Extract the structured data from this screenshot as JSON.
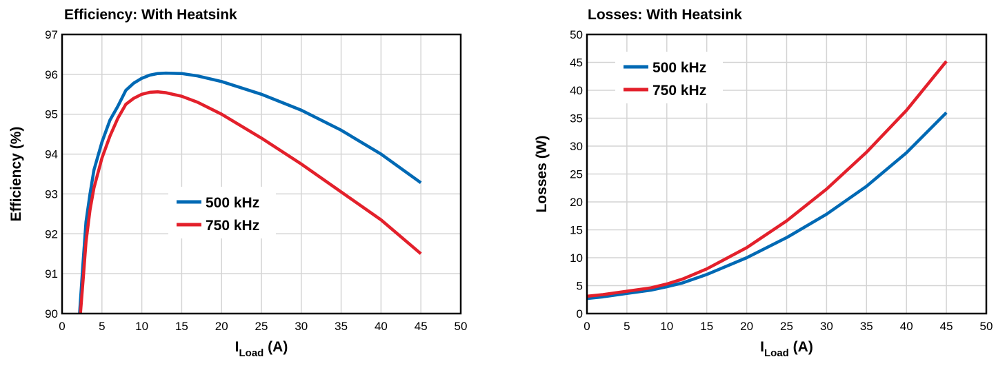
{
  "chart_data": [
    {
      "type": "line",
      "title": "Efficiency: With Heatsink",
      "xlabel": "I",
      "xlabel_sub": "Load",
      "xlabel_unit": " (A)",
      "ylabel": "Efficiency (%)",
      "xlim": [
        0,
        50
      ],
      "ylim": [
        90,
        97
      ],
      "xticks": [
        0,
        5,
        10,
        15,
        20,
        25,
        30,
        35,
        40,
        45,
        50
      ],
      "yticks": [
        90,
        91,
        92,
        93,
        94,
        95,
        96,
        97
      ],
      "grid": true,
      "legend_position": "center",
      "series": [
        {
          "name": "500 kHz",
          "color": "#0069b4",
          "x": [
            2.2,
            2.6,
            3,
            3.5,
            4,
            5,
            6,
            7,
            8,
            9,
            10,
            11,
            12,
            13,
            15,
            17,
            20,
            25,
            30,
            35,
            40,
            45
          ],
          "y": [
            90,
            91.2,
            92.3,
            93.0,
            93.6,
            94.3,
            94.85,
            95.2,
            95.6,
            95.78,
            95.9,
            95.98,
            96.02,
            96.03,
            96.02,
            95.96,
            95.82,
            95.5,
            95.1,
            94.6,
            94.0,
            93.28
          ]
        },
        {
          "name": "750 kHz",
          "color": "#e3202b",
          "x": [
            2.3,
            2.7,
            3,
            3.5,
            4,
            5,
            6,
            7,
            8,
            9,
            10,
            11,
            12,
            13,
            15,
            17,
            20,
            25,
            30,
            35,
            40,
            45
          ],
          "y": [
            90,
            91.0,
            91.8,
            92.6,
            93.15,
            93.9,
            94.45,
            94.9,
            95.25,
            95.4,
            95.5,
            95.55,
            95.56,
            95.54,
            95.45,
            95.3,
            95.0,
            94.4,
            93.75,
            93.05,
            92.35,
            91.5
          ]
        }
      ]
    },
    {
      "type": "line",
      "title": "Losses: With Heatsink",
      "xlabel": "I",
      "xlabel_sub": "Load",
      "xlabel_unit": " (A)",
      "ylabel": "Losses (W)",
      "xlim": [
        0,
        50
      ],
      "ylim": [
        0,
        50
      ],
      "xticks": [
        0,
        5,
        10,
        15,
        20,
        25,
        30,
        35,
        40,
        45,
        50
      ],
      "yticks": [
        0,
        5,
        10,
        15,
        20,
        25,
        30,
        35,
        40,
        45,
        50
      ],
      "grid": true,
      "legend_position": "top-left",
      "series": [
        {
          "name": "500 kHz",
          "color": "#0069b4",
          "x": [
            0,
            2,
            5,
            8,
            10,
            12,
            15,
            20,
            25,
            30,
            35,
            40,
            45
          ],
          "y": [
            2.7,
            3.0,
            3.6,
            4.2,
            4.8,
            5.5,
            7.0,
            10.0,
            13.6,
            17.8,
            22.8,
            28.8,
            36.0
          ]
        },
        {
          "name": "750 kHz",
          "color": "#e3202b",
          "x": [
            0,
            2,
            5,
            8,
            10,
            12,
            15,
            20,
            25,
            30,
            35,
            40,
            45
          ],
          "y": [
            3.1,
            3.4,
            4.0,
            4.6,
            5.3,
            6.2,
            8.0,
            11.8,
            16.6,
            22.3,
            28.9,
            36.4,
            45.2
          ]
        }
      ]
    }
  ]
}
